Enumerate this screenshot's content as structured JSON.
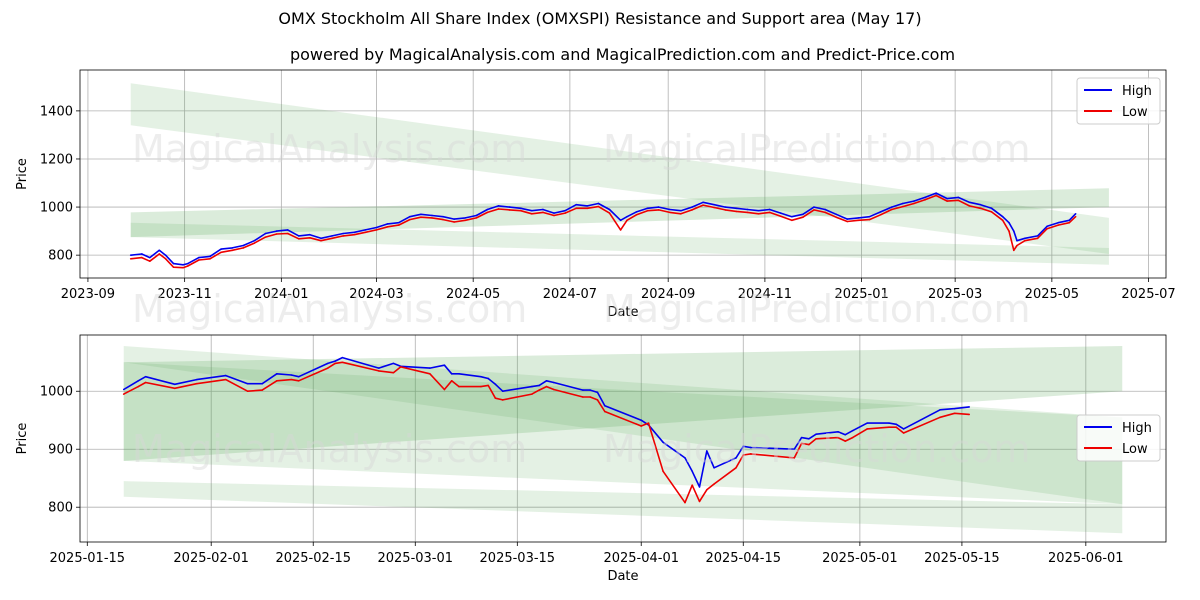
{
  "title": "OMX Stockholm All Share Index (OMXSPI) Resistance and Support area (May 17)",
  "subtitle": "powered by MagicalAnalysis.com and MagicalPrediction.com and Predict-Price.com",
  "watermark_left": "MagicalAnalysis.com",
  "watermark_right": "MagicalPrediction.com",
  "colors": {
    "high": "#0000ee",
    "low": "#ee0000",
    "band": "#5aaa5a",
    "grid": "#b0b0b0"
  },
  "chart_data": [
    {
      "type": "line",
      "xlabel": "Date",
      "ylabel": "Price",
      "xlim": [
        "2023-08-27",
        "2025-07-12"
      ],
      "ylim": [
        705,
        1570
      ],
      "x_ticks": [
        "2023-09",
        "2023-11",
        "2024-01",
        "2024-03",
        "2024-05",
        "2024-07",
        "2024-09",
        "2024-11",
        "2025-01",
        "2025-03",
        "2025-05",
        "2025-07"
      ],
      "y_ticks": [
        800,
        1000,
        1200,
        1400
      ],
      "grid": true,
      "legend": "top-right",
      "bands": [
        {
          "x": [
            "2023-09-28",
            "2025-06-06"
          ],
          "upper": [
            1515,
            955
          ],
          "lower": [
            1340,
            805
          ]
        },
        {
          "x": [
            "2023-09-28",
            "2025-06-06"
          ],
          "upper": [
            978,
            1078
          ],
          "lower": [
            875,
            1000
          ]
        },
        {
          "x": [
            "2023-09-28",
            "2025-06-06"
          ],
          "upper": [
            1340,
            955
          ],
          "lower": [
            1340,
            955
          ]
        },
        {
          "x": [
            "2023-09-28",
            "2025-06-06"
          ],
          "upper": [
            935,
            830
          ],
          "lower": [
            875,
            760
          ]
        }
      ],
      "series": [
        {
          "name": "High",
          "x": [
            "2023-09-28",
            "2023-10-05",
            "2023-10-10",
            "2023-10-16",
            "2023-10-20",
            "2023-10-25",
            "2023-10-31",
            "2023-11-03",
            "2023-11-10",
            "2023-11-17",
            "2023-11-24",
            "2023-12-01",
            "2023-12-08",
            "2023-12-15",
            "2023-12-22",
            "2023-12-29",
            "2024-01-05",
            "2024-01-12",
            "2024-01-19",
            "2024-01-26",
            "2024-02-02",
            "2024-02-09",
            "2024-02-16",
            "2024-02-23",
            "2024-03-01",
            "2024-03-08",
            "2024-03-15",
            "2024-03-22",
            "2024-03-29",
            "2024-04-05",
            "2024-04-12",
            "2024-04-19",
            "2024-04-26",
            "2024-05-03",
            "2024-05-10",
            "2024-05-17",
            "2024-05-24",
            "2024-05-31",
            "2024-06-07",
            "2024-06-14",
            "2024-06-21",
            "2024-06-28",
            "2024-07-05",
            "2024-07-12",
            "2024-07-19",
            "2024-07-26",
            "2024-08-02",
            "2024-08-06",
            "2024-08-12",
            "2024-08-19",
            "2024-08-26",
            "2024-09-02",
            "2024-09-09",
            "2024-09-16",
            "2024-09-23",
            "2024-09-30",
            "2024-10-07",
            "2024-10-14",
            "2024-10-21",
            "2024-10-28",
            "2024-11-04",
            "2024-11-11",
            "2024-11-18",
            "2024-11-25",
            "2024-12-02",
            "2024-12-09",
            "2024-12-16",
            "2024-12-23",
            "2024-12-30",
            "2025-01-06",
            "2025-01-13",
            "2025-01-20",
            "2025-01-27",
            "2025-02-03",
            "2025-02-10",
            "2025-02-17",
            "2025-02-24",
            "2025-03-03",
            "2025-03-10",
            "2025-03-17",
            "2025-03-24",
            "2025-03-31",
            "2025-04-04",
            "2025-04-07",
            "2025-04-09",
            "2025-04-14",
            "2025-04-22",
            "2025-04-28",
            "2025-05-05",
            "2025-05-12",
            "2025-05-16"
          ],
          "values": [
            800,
            805,
            790,
            820,
            800,
            765,
            760,
            765,
            790,
            795,
            825,
            830,
            840,
            860,
            890,
            900,
            905,
            880,
            885,
            870,
            880,
            890,
            895,
            905,
            915,
            930,
            935,
            960,
            970,
            965,
            960,
            950,
            955,
            965,
            990,
            1005,
            1000,
            995,
            985,
            990,
            975,
            985,
            1010,
            1005,
            1015,
            990,
            945,
            960,
            980,
            995,
            1000,
            990,
            985,
            1000,
            1020,
            1010,
            1000,
            995,
            990,
            985,
            990,
            975,
            960,
            970,
            1000,
            990,
            970,
            950,
            955,
            960,
            980,
            1000,
            1015,
            1025,
            1040,
            1058,
            1035,
            1040,
            1020,
            1010,
            995,
            960,
            935,
            900,
            860,
            870,
            880,
            920,
            935,
            945,
            972
          ]
        },
        {
          "name": "Low",
          "x": [
            "2023-09-28",
            "2023-10-05",
            "2023-10-10",
            "2023-10-16",
            "2023-10-20",
            "2023-10-25",
            "2023-10-31",
            "2023-11-03",
            "2023-11-10",
            "2023-11-17",
            "2023-11-24",
            "2023-12-01",
            "2023-12-08",
            "2023-12-15",
            "2023-12-22",
            "2023-12-29",
            "2024-01-05",
            "2024-01-12",
            "2024-01-19",
            "2024-01-26",
            "2024-02-02",
            "2024-02-09",
            "2024-02-16",
            "2024-02-23",
            "2024-03-01",
            "2024-03-08",
            "2024-03-15",
            "2024-03-22",
            "2024-03-29",
            "2024-04-05",
            "2024-04-12",
            "2024-04-19",
            "2024-04-26",
            "2024-05-03",
            "2024-05-10",
            "2024-05-17",
            "2024-05-24",
            "2024-05-31",
            "2024-06-07",
            "2024-06-14",
            "2024-06-21",
            "2024-06-28",
            "2024-07-05",
            "2024-07-12",
            "2024-07-19",
            "2024-07-26",
            "2024-08-02",
            "2024-08-06",
            "2024-08-12",
            "2024-08-19",
            "2024-08-26",
            "2024-09-02",
            "2024-09-09",
            "2024-09-16",
            "2024-09-23",
            "2024-09-30",
            "2024-10-07",
            "2024-10-14",
            "2024-10-21",
            "2024-10-28",
            "2024-11-04",
            "2024-11-11",
            "2024-11-18",
            "2024-11-25",
            "2024-12-02",
            "2024-12-09",
            "2024-12-16",
            "2024-12-23",
            "2024-12-30",
            "2025-01-06",
            "2025-01-13",
            "2025-01-20",
            "2025-01-27",
            "2025-02-03",
            "2025-02-10",
            "2025-02-17",
            "2025-02-24",
            "2025-03-03",
            "2025-03-10",
            "2025-03-17",
            "2025-03-24",
            "2025-03-31",
            "2025-04-04",
            "2025-04-07",
            "2025-04-09",
            "2025-04-14",
            "2025-04-22",
            "2025-04-28",
            "2025-05-05",
            "2025-05-12",
            "2025-05-16"
          ],
          "values": [
            785,
            790,
            775,
            805,
            785,
            750,
            748,
            755,
            780,
            785,
            812,
            820,
            830,
            850,
            875,
            888,
            890,
            868,
            872,
            860,
            870,
            880,
            885,
            895,
            905,
            918,
            925,
            948,
            958,
            955,
            948,
            938,
            945,
            955,
            978,
            992,
            988,
            985,
            972,
            978,
            965,
            975,
            995,
            995,
            1002,
            975,
            905,
            945,
            968,
            985,
            988,
            978,
            972,
            988,
            1008,
            998,
            988,
            982,
            978,
            972,
            978,
            962,
            945,
            958,
            988,
            978,
            958,
            940,
            945,
            948,
            968,
            990,
            1002,
            1015,
            1030,
            1048,
            1025,
            1028,
            1005,
            995,
            980,
            945,
            900,
            820,
            840,
            860,
            870,
            910,
            925,
            935,
            960
          ]
        }
      ]
    },
    {
      "type": "line",
      "xlabel": "Date",
      "ylabel": "Price",
      "xlim": [
        "2025-01-14",
        "2025-06-12"
      ],
      "ylim": [
        740,
        1097
      ],
      "x_ticks": [
        "2025-01-15",
        "2025-02-01",
        "2025-02-15",
        "2025-03-01",
        "2025-03-15",
        "2025-04-01",
        "2025-04-15",
        "2025-05-01",
        "2025-05-15",
        "2025-06-01"
      ],
      "y_ticks": [
        800,
        900,
        1000
      ],
      "grid": true,
      "legend": "center-right",
      "bands": [
        {
          "x": [
            "2025-01-20",
            "2025-06-06"
          ],
          "upper": [
            1078,
            955
          ],
          "lower": [
            1050,
            805
          ]
        },
        {
          "x": [
            "2025-01-20",
            "2025-06-06"
          ],
          "upper": [
            1050,
            1078
          ],
          "lower": [
            880,
            1000
          ]
        },
        {
          "x": [
            "2025-01-20",
            "2025-06-06"
          ],
          "upper": [
            1050,
            955
          ],
          "lower": [
            880,
            805
          ]
        },
        {
          "x": [
            "2025-01-20",
            "2025-06-06"
          ],
          "upper": [
            845,
            805
          ],
          "lower": [
            818,
            755
          ]
        }
      ],
      "series": [
        {
          "name": "High",
          "x": [
            "2025-01-20",
            "2025-01-22",
            "2025-01-23",
            "2025-01-27",
            "2025-01-30",
            "2025-02-03",
            "2025-02-06",
            "2025-02-08",
            "2025-02-10",
            "2025-02-12",
            "2025-02-13",
            "2025-02-17",
            "2025-02-18",
            "2025-02-19",
            "2025-02-24",
            "2025-02-26",
            "2025-02-27",
            "2025-03-03",
            "2025-03-05",
            "2025-03-06",
            "2025-03-07",
            "2025-03-10",
            "2025-03-11",
            "2025-03-12",
            "2025-03-13",
            "2025-03-17",
            "2025-03-18",
            "2025-03-19",
            "2025-03-20",
            "2025-03-24",
            "2025-03-25",
            "2025-03-26",
            "2025-03-27",
            "2025-04-01",
            "2025-04-02",
            "2025-04-04",
            "2025-04-07",
            "2025-04-08",
            "2025-04-09",
            "2025-04-10",
            "2025-04-11",
            "2025-04-14",
            "2025-04-15",
            "2025-04-16",
            "2025-04-22",
            "2025-04-23",
            "2025-04-24",
            "2025-04-25",
            "2025-04-28",
            "2025-04-29",
            "2025-04-30",
            "2025-05-02",
            "2025-05-05",
            "2025-05-06",
            "2025-05-07",
            "2025-05-12",
            "2025-05-14",
            "2025-05-16"
          ],
          "values": [
            1003,
            1018,
            1025,
            1012,
            1020,
            1027,
            1013,
            1013,
            1030,
            1028,
            1025,
            1048,
            1052,
            1058,
            1040,
            1048,
            1043,
            1040,
            1045,
            1030,
            1030,
            1025,
            1022,
            1012,
            1000,
            1008,
            1010,
            1018,
            1015,
            1002,
            1002,
            998,
            975,
            950,
            942,
            912,
            885,
            862,
            835,
            897,
            868,
            885,
            905,
            903,
            900,
            920,
            918,
            926,
            930,
            925,
            932,
            945,
            945,
            943,
            935,
            968,
            970,
            973
          ]
        },
        {
          "name": "Low",
          "x": [
            "2025-01-20",
            "2025-01-22",
            "2025-01-23",
            "2025-01-27",
            "2025-01-30",
            "2025-02-03",
            "2025-02-06",
            "2025-02-08",
            "2025-02-10",
            "2025-02-12",
            "2025-02-13",
            "2025-02-17",
            "2025-02-18",
            "2025-02-19",
            "2025-02-24",
            "2025-02-26",
            "2025-02-27",
            "2025-03-03",
            "2025-03-05",
            "2025-03-06",
            "2025-03-07",
            "2025-03-10",
            "2025-03-11",
            "2025-03-12",
            "2025-03-13",
            "2025-03-17",
            "2025-03-18",
            "2025-03-19",
            "2025-03-20",
            "2025-03-24",
            "2025-03-25",
            "2025-03-26",
            "2025-03-27",
            "2025-04-01",
            "2025-04-02",
            "2025-04-04",
            "2025-04-07",
            "2025-04-08",
            "2025-04-09",
            "2025-04-10",
            "2025-04-11",
            "2025-04-14",
            "2025-04-15",
            "2025-04-16",
            "2025-04-22",
            "2025-04-23",
            "2025-04-24",
            "2025-04-25",
            "2025-04-28",
            "2025-04-29",
            "2025-04-30",
            "2025-05-02",
            "2025-05-05",
            "2025-05-06",
            "2025-05-07",
            "2025-05-12",
            "2025-05-14",
            "2025-05-16"
          ],
          "values": [
            995,
            1008,
            1015,
            1005,
            1013,
            1020,
            1000,
            1002,
            1018,
            1020,
            1018,
            1040,
            1048,
            1050,
            1035,
            1032,
            1042,
            1030,
            1003,
            1018,
            1008,
            1008,
            1010,
            988,
            985,
            995,
            1002,
            1008,
            1003,
            990,
            990,
            985,
            965,
            940,
            945,
            862,
            808,
            838,
            810,
            830,
            840,
            868,
            890,
            892,
            885,
            910,
            908,
            918,
            920,
            914,
            920,
            935,
            938,
            938,
            928,
            955,
            962,
            960
          ]
        }
      ]
    }
  ]
}
